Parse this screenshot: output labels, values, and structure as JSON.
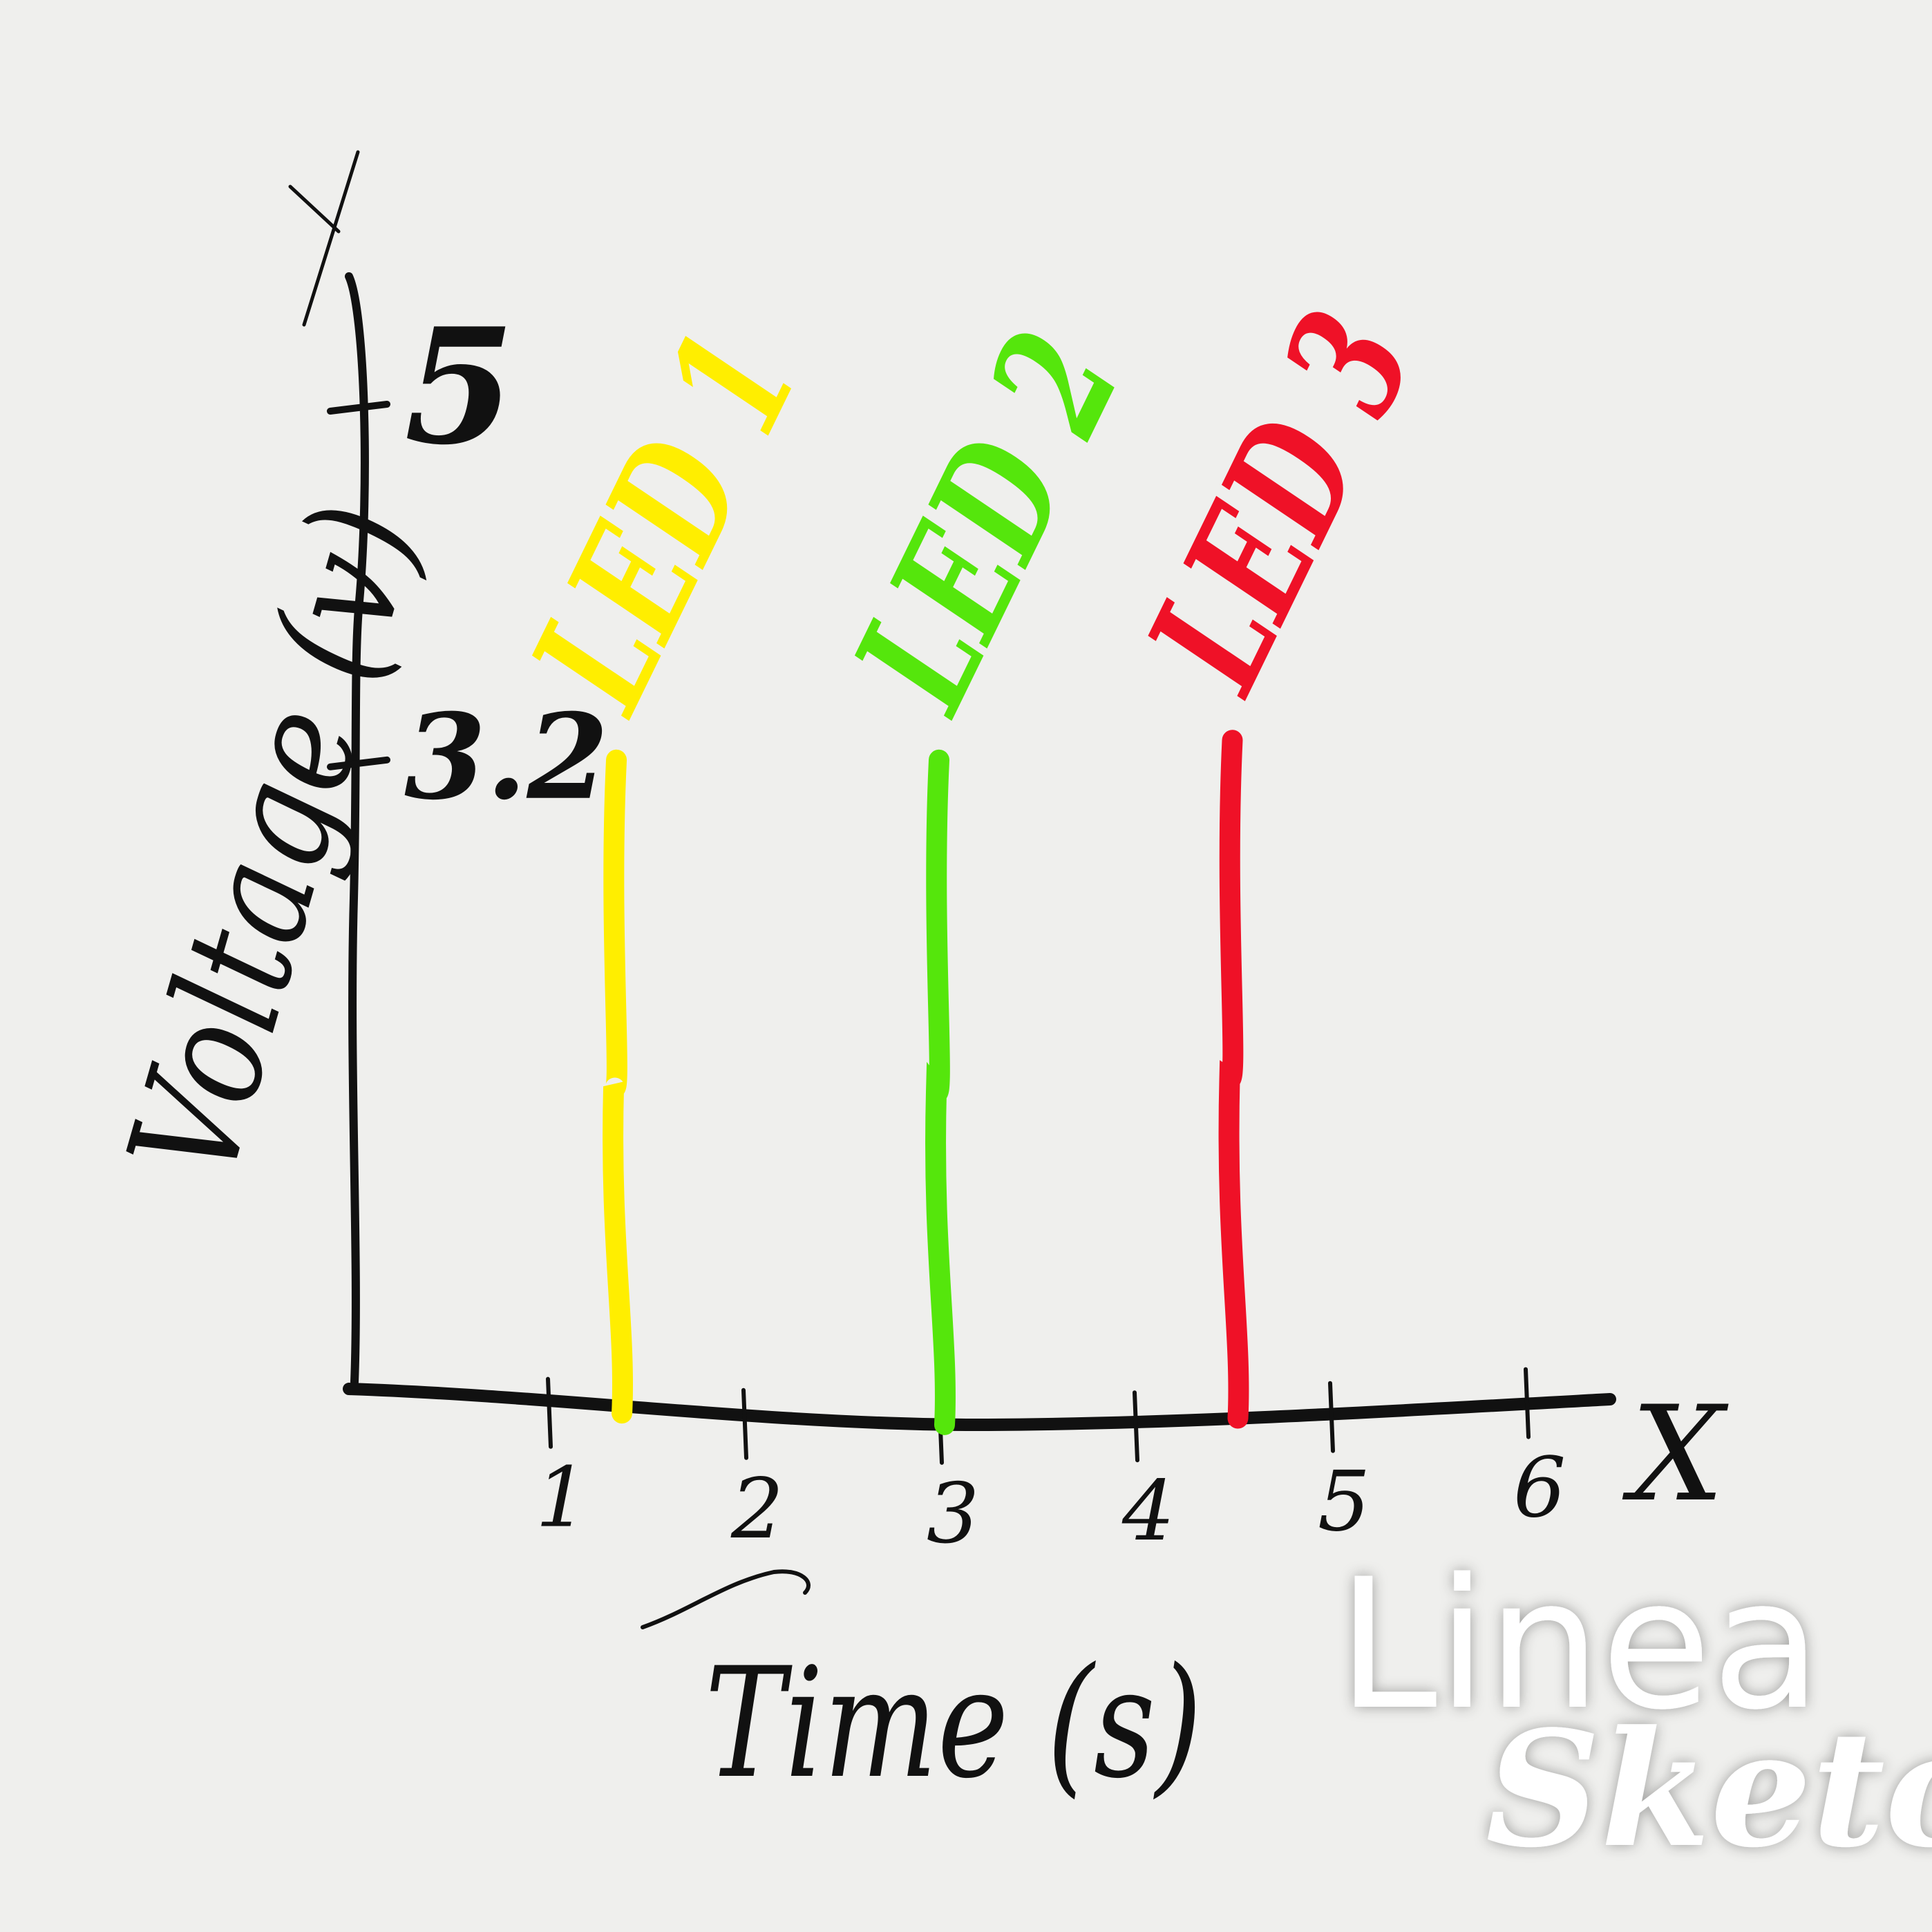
{
  "chart_data": {
    "type": "bar",
    "ylabel": "Voltage (v)",
    "xlabel": "Time (s)",
    "x_axis_letter": "X",
    "y_axis_letter": "Y",
    "x_ticks": [
      "1",
      "2",
      "3",
      "4",
      "5",
      "6"
    ],
    "y_ticks": [
      "3.2",
      "5"
    ],
    "xlim": [
      0,
      7
    ],
    "ylim": [
      0,
      6.8
    ],
    "grid": false,
    "series": [
      {
        "name": "LED 1",
        "x": 1.35,
        "value": 3.2,
        "color": "#ffee00"
      },
      {
        "name": "LED 2",
        "x": 3.0,
        "value": 3.2,
        "color": "#55e60c"
      },
      {
        "name": "LED 3",
        "x": 4.5,
        "value": 3.3,
        "color": "#ef1127"
      }
    ]
  },
  "watermark": {
    "line1": "Linea",
    "line2": "Sketch"
  }
}
